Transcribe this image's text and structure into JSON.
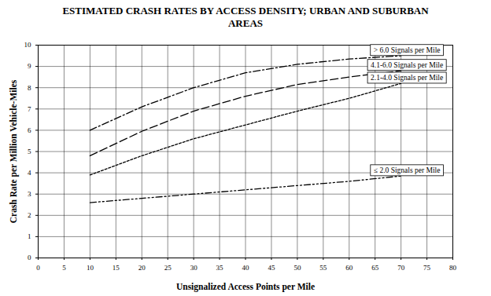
{
  "chart_data": {
    "type": "line",
    "title": "ESTIMATED CRASH RATES BY ACCESS DENSITY; URBAN AND SUBURBAN AREAS",
    "x_label": "Unsignalized Access Points per Mile",
    "y_label": "Crash Rate per Million Vehicle-Miles",
    "x": [
      10,
      20,
      30,
      40,
      50,
      60,
      70
    ],
    "series": [
      {
        "name": "> 6.0 Signals per Mile",
        "color": "#000000",
        "line_style": "dashdot",
        "values": [
          6.0,
          7.1,
          8.0,
          8.7,
          9.1,
          9.35,
          9.5
        ]
      },
      {
        "name": "4.1-6.0 Signals per Mile",
        "color": "#000000",
        "line_style": "dashed",
        "values": [
          4.8,
          5.95,
          6.9,
          7.6,
          8.15,
          8.5,
          8.8
        ]
      },
      {
        "name": "2.1-4.0 Signals per Mile",
        "color": "#000000",
        "line_style": "dotted",
        "values": [
          3.9,
          4.8,
          5.6,
          6.25,
          6.9,
          7.5,
          8.2
        ]
      },
      {
        "name": "≤ 2.0 Signals per Mile",
        "color": "#000000",
        "line_style": "dashdotdot",
        "values": [
          2.6,
          2.8,
          3.0,
          3.2,
          3.4,
          3.6,
          3.85
        ]
      }
    ],
    "xlim": [
      0,
      80
    ],
    "ylim": [
      0,
      10
    ],
    "xticks": [
      0,
      5,
      10,
      15,
      20,
      25,
      30,
      35,
      40,
      45,
      50,
      55,
      60,
      65,
      70,
      75,
      80
    ],
    "yticks": [
      0,
      1,
      2,
      3,
      4,
      5,
      6,
      7,
      8,
      9,
      10
    ],
    "grid": true
  }
}
